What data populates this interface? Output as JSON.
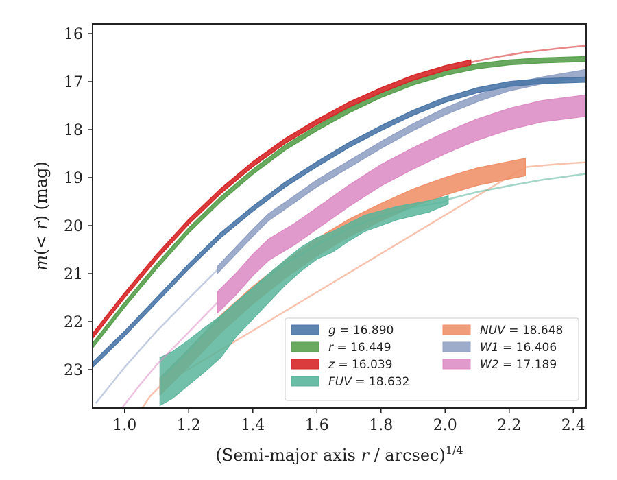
{
  "chart_data": {
    "type": "line",
    "title": "",
    "xlabel": "(Semi-major axis r / arcsec)^{1/4}",
    "ylabel": "m(< r) (mag)",
    "xlim": [
      0.9,
      2.44
    ],
    "ylim": [
      23.8,
      15.8
    ],
    "y_inverted": true,
    "grid": false,
    "legend_position": "lower-right",
    "x_ticks": [
      1.0,
      1.2,
      1.4,
      1.6,
      1.8,
      2.0,
      2.2,
      2.4
    ],
    "x_tick_labels": [
      "1.0",
      "1.2",
      "1.4",
      "1.6",
      "1.8",
      "2.0",
      "2.2",
      "2.4"
    ],
    "y_ticks": [
      16,
      17,
      18,
      19,
      20,
      21,
      22,
      23
    ],
    "y_tick_labels": [
      "16",
      "17",
      "18",
      "19",
      "20",
      "21",
      "22",
      "23"
    ],
    "series": [
      {
        "name": "g = 16.890",
        "color": "#4c78a8",
        "band_width_mag": 0.05,
        "data_x": [
          0.9,
          1.0,
          1.1,
          1.2,
          1.3,
          1.4,
          1.5,
          1.6,
          1.7,
          1.8,
          1.9,
          2.0,
          2.1,
          2.2,
          2.3,
          2.44
        ],
        "data_y": [
          22.9,
          22.25,
          21.55,
          20.85,
          20.2,
          19.65,
          19.15,
          18.72,
          18.32,
          17.97,
          17.65,
          17.38,
          17.18,
          17.05,
          16.99,
          16.96
        ],
        "fit_x": [],
        "fit_y": []
      },
      {
        "name": "r = 16.449",
        "color": "#59a14f",
        "band_width_mag": 0.05,
        "data_x": [
          0.9,
          1.0,
          1.1,
          1.2,
          1.3,
          1.4,
          1.5,
          1.6,
          1.7,
          1.8,
          1.9,
          2.0,
          2.1,
          2.2,
          2.3,
          2.44
        ],
        "data_y": [
          22.5,
          21.65,
          20.85,
          20.1,
          19.45,
          18.88,
          18.38,
          17.97,
          17.6,
          17.28,
          17.02,
          16.82,
          16.68,
          16.6,
          16.56,
          16.53
        ],
        "fit_x": [],
        "fit_y": []
      },
      {
        "name": "z = 16.039",
        "color": "#d62728",
        "band_width_mag": 0.05,
        "data_x": [
          0.9,
          1.0,
          1.1,
          1.2,
          1.3,
          1.4,
          1.5,
          1.6,
          1.7,
          1.8,
          1.9,
          2.0,
          2.08
        ],
        "data_y": [
          22.3,
          21.45,
          20.65,
          19.92,
          19.28,
          18.72,
          18.24,
          17.84,
          17.48,
          17.18,
          16.92,
          16.72,
          16.6
        ],
        "fit_x": [
          2.08,
          2.15,
          2.25,
          2.35,
          2.44
        ],
        "fit_y": [
          16.6,
          16.5,
          16.39,
          16.31,
          16.25
        ]
      },
      {
        "name": "FUV = 18.632",
        "color": "#59b59b",
        "band_lower": [
          23.75,
          23.6,
          23.32,
          23.05,
          22.75,
          22.3,
          21.95,
          21.6,
          21.25,
          20.95,
          20.7,
          20.55,
          20.32,
          20.12,
          19.88,
          19.72,
          19.55
        ],
        "band_upper": [
          22.75,
          22.62,
          22.38,
          22.12,
          21.88,
          21.58,
          21.3,
          21.0,
          20.72,
          20.45,
          20.25,
          20.12,
          19.95,
          19.78,
          19.6,
          19.48,
          19.38
        ],
        "band_x": [
          1.11,
          1.15,
          1.2,
          1.25,
          1.3,
          1.35,
          1.4,
          1.45,
          1.5,
          1.55,
          1.6,
          1.65,
          1.7,
          1.75,
          1.85,
          1.95,
          2.01
        ],
        "fit_x": [
          1.11,
          1.2,
          1.3,
          1.4,
          1.5,
          1.6,
          1.7,
          1.8,
          1.9,
          2.0,
          2.01,
          2.1,
          2.2,
          2.3,
          2.44
        ],
        "fit_y": [
          23.2,
          22.6,
          21.9,
          21.3,
          20.8,
          20.4,
          20.05,
          19.8,
          19.62,
          19.5,
          19.45,
          19.3,
          19.17,
          19.05,
          18.92
        ]
      },
      {
        "name": "NUV = 18.648",
        "color": "#f0926c",
        "band_width_mag": 0.18,
        "data_x": [
          1.11,
          1.2,
          1.3,
          1.4,
          1.5,
          1.6,
          1.7,
          1.8,
          1.9,
          2.0,
          2.1,
          2.25
        ],
        "data_y": [
          23.35,
          22.75,
          22.05,
          21.45,
          20.92,
          20.45,
          20.05,
          19.72,
          19.42,
          19.18,
          18.98,
          18.78
        ],
        "fit_x": [
          0.9,
          0.96,
          1.03,
          1.08,
          1.11,
          2.25,
          2.35,
          2.44
        ],
        "fit_y": [
          25.4,
          24.8,
          24.05,
          23.55,
          23.35,
          18.78,
          18.72,
          18.68
        ]
      },
      {
        "name": "W1 = 16.406",
        "color": "#94a3c6",
        "band_width_mag": 0.07,
        "data_x": [
          1.29,
          1.35,
          1.4,
          1.45,
          1.53,
          1.6,
          1.7,
          1.8,
          1.9,
          2.0,
          2.1,
          2.2,
          2.3,
          2.44
        ],
        "data_y": [
          20.92,
          20.5,
          20.15,
          19.82,
          19.45,
          19.12,
          18.72,
          18.32,
          17.95,
          17.62,
          17.35,
          17.12,
          16.98,
          16.82
        ],
        "fit_x": [
          0.91,
          1.0,
          1.1,
          1.2,
          1.29
        ],
        "fit_y": [
          23.7,
          22.95,
          22.2,
          21.52,
          20.92
        ]
      },
      {
        "name": "W2 = 17.189",
        "color": "#dd8fc5",
        "band_width_mag": 0.22,
        "data_x": [
          1.29,
          1.35,
          1.4,
          1.45,
          1.53,
          1.6,
          1.7,
          1.8,
          1.9,
          2.0,
          2.1,
          2.2,
          2.3,
          2.44
        ],
        "data_y": [
          21.6,
          21.2,
          20.82,
          20.5,
          20.18,
          19.85,
          19.38,
          18.95,
          18.6,
          18.28,
          18.0,
          17.78,
          17.62,
          17.5
        ],
        "fit_x": [
          0.98,
          1.05,
          1.1,
          1.2,
          1.29
        ],
        "fit_y": [
          23.9,
          23.3,
          22.9,
          22.22,
          21.6
        ]
      }
    ],
    "legend": [
      {
        "label": "g = 16.890",
        "color": "#4c78a8"
      },
      {
        "label": "r = 16.449",
        "color": "#59a14f"
      },
      {
        "label": "z = 16.039",
        "color": "#d62728"
      },
      {
        "label": "FUV = 18.632",
        "color": "#59b59b"
      },
      {
        "label": "NUV = 18.648",
        "color": "#f0926c"
      },
      {
        "label": "W1 = 16.406",
        "color": "#94a3c6"
      },
      {
        "label": "W2 = 17.189",
        "color": "#dd8fc5"
      }
    ]
  }
}
